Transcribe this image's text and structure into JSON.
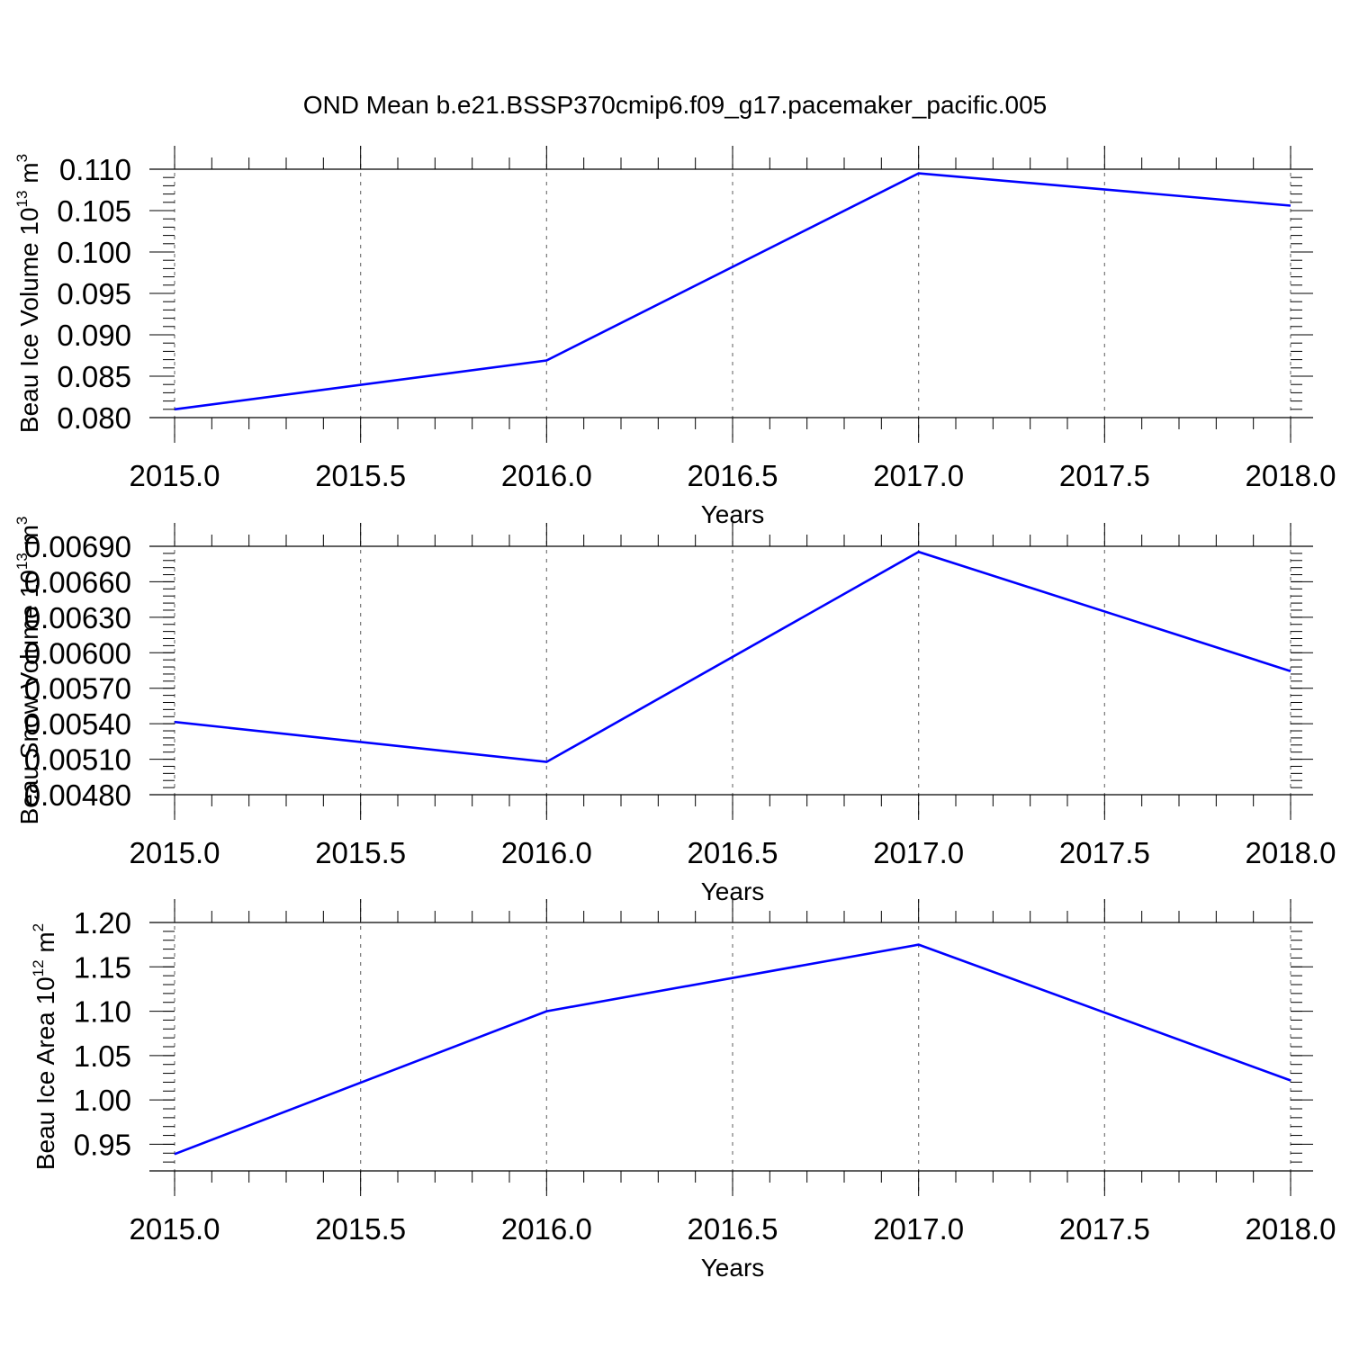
{
  "title": "OND Mean b.e21.BSSP370cmip6.f09_g17.pacemaker_pacific.005",
  "colors": {
    "series": "#0000ff",
    "grid": "#777777",
    "axis": "#000000"
  },
  "chart_data": [
    {
      "type": "line",
      "title": "OND Mean b.e21.BSSP370cmip6.f09_g17.pacemaker_pacific.005",
      "xlabel": "Years",
      "ylabel": {
        "text": "Beau Ice Volume 10",
        "exponent": "13",
        "unit": " m",
        "unit_exponent": "3"
      },
      "xlim": [
        2015.0,
        2018.0
      ],
      "ylim": [
        0.08,
        0.11
      ],
      "xticks": [
        "2015.0",
        "2015.5",
        "2016.0",
        "2016.5",
        "2017.0",
        "2017.5",
        "2018.0"
      ],
      "yticks": [
        "0.080",
        "0.085",
        "0.090",
        "0.095",
        "0.100",
        "0.105",
        "0.110"
      ],
      "grid": "vertical dashed",
      "x": [
        2015,
        2016,
        2017,
        2018
      ],
      "series": [
        {
          "values": [
            0.081,
            0.0869,
            0.1095,
            0.1056
          ]
        }
      ]
    },
    {
      "type": "line",
      "xlabel": "Years",
      "ylabel": {
        "text": "Beau Snow Volume 10",
        "exponent": "13",
        "unit": " m",
        "unit_exponent": "3"
      },
      "xlim": [
        2015.0,
        2018.0
      ],
      "ylim": [
        0.0048,
        0.0069
      ],
      "xticks": [
        "2015.0",
        "2015.5",
        "2016.0",
        "2016.5",
        "2017.0",
        "2017.5",
        "2018.0"
      ],
      "yticks": [
        "0.00480",
        "0.00510",
        "0.00540",
        "0.00570",
        "0.00600",
        "0.00630",
        "0.00660",
        "0.00690"
      ],
      "grid": "vertical dashed",
      "x": [
        2015,
        2016,
        2017,
        2018
      ],
      "series": [
        {
          "values": [
            0.005415,
            0.005077,
            0.006853,
            0.005845
          ]
        }
      ]
    },
    {
      "type": "line",
      "xlabel": "Years",
      "ylabel": {
        "text": "Beau Ice Area 10",
        "exponent": "12",
        "unit": " m",
        "unit_exponent": "2"
      },
      "xlim": [
        2015.0,
        2018.0
      ],
      "ylim": [
        0.92,
        1.2
      ],
      "xticks": [
        "2015.0",
        "2015.5",
        "2016.0",
        "2016.5",
        "2017.0",
        "2017.5",
        "2018.0"
      ],
      "yticks": [
        "0.95",
        "1.00",
        "1.05",
        "1.10",
        "1.15",
        "1.20"
      ],
      "grid": "vertical dashed",
      "x": [
        2015,
        2016,
        2017,
        2018
      ],
      "series": [
        {
          "values": [
            0.939,
            1.1,
            1.175,
            1.022
          ]
        }
      ]
    }
  ]
}
